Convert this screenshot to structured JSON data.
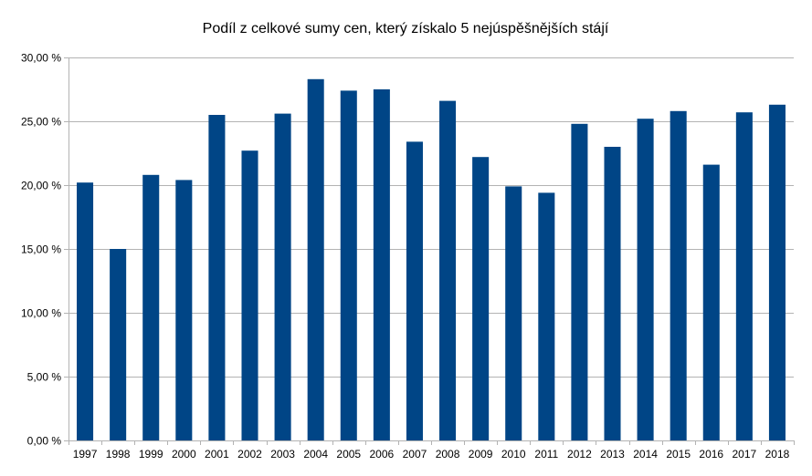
{
  "chart_data": {
    "type": "bar",
    "title": "Podíl z celkové sumy cen, který získalo 5 nejúspěšnějších stájí",
    "xlabel": "",
    "ylabel": "",
    "categories": [
      "1997",
      "1998",
      "1999",
      "2000",
      "2001",
      "2002",
      "2003",
      "2004",
      "2005",
      "2006",
      "2007",
      "2008",
      "2009",
      "2010",
      "2011",
      "2012",
      "2013",
      "2014",
      "2015",
      "2016",
      "2017",
      "2018"
    ],
    "values": [
      20.2,
      15.0,
      20.8,
      20.4,
      25.5,
      22.7,
      25.6,
      28.3,
      27.4,
      27.5,
      23.4,
      26.6,
      22.2,
      19.9,
      19.4,
      24.8,
      23.0,
      25.2,
      25.8,
      21.6,
      25.7,
      26.3
    ],
    "ylim": [
      0,
      30
    ],
    "y_ticks": [
      0,
      5,
      10,
      15,
      20,
      25,
      30
    ],
    "y_tick_labels": [
      "0,00 %",
      "5,00 %",
      "10,00 %",
      "15,00 %",
      "20,00 %",
      "25,00 %",
      "30,00 %"
    ],
    "grid": true,
    "legend": "none",
    "colors": {
      "bar": "#004586",
      "grid": "#b3b3b3",
      "axis": "#b3b3b3"
    }
  }
}
